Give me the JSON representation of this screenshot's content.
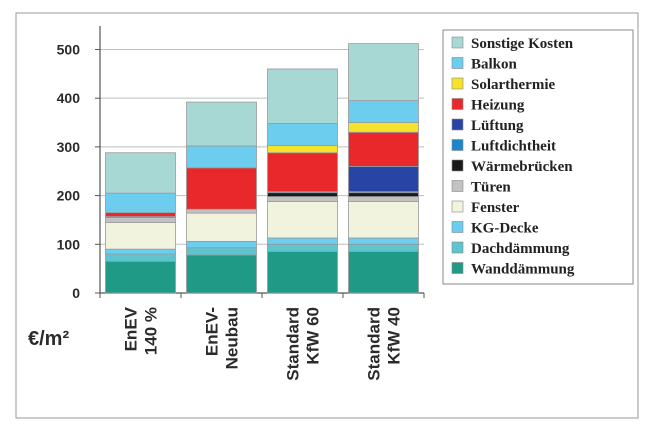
{
  "chart_data": {
    "type": "bar",
    "stacked": true,
    "ylim": [
      0,
      540
    ],
    "yticks": [
      0,
      100,
      200,
      300,
      400,
      500
    ],
    "ylabel": "€/m²",
    "legend_position": "right",
    "categories": [
      [
        "EnEV",
        "140 %"
      ],
      [
        "EnEV-",
        "Neubau"
      ],
      [
        "Standard",
        "KfW 60"
      ],
      [
        "Standard",
        "KfW 40"
      ]
    ],
    "series": [
      {
        "name": "Wanddämmung",
        "color": "#1e9a86",
        "values": [
          65,
          78,
          85,
          85
        ]
      },
      {
        "name": "Dachdämmung",
        "color": "#5ec4cf",
        "values": [
          15,
          15,
          15,
          15
        ]
      },
      {
        "name": "KG-Decke",
        "color": "#6ccdee",
        "values": [
          10,
          13,
          13,
          13
        ]
      },
      {
        "name": "Fenster",
        "color": "#f2f3df",
        "values": [
          55,
          58,
          75,
          75
        ]
      },
      {
        "name": "Türen",
        "color": "#c2c2c2",
        "values": [
          10,
          8,
          10,
          10
        ]
      },
      {
        "name": "Wärmebrücken",
        "color": "#1a1a1a",
        "values": [
          0,
          0,
          8,
          8
        ]
      },
      {
        "name": "Luftdichtheit",
        "color": "#1d86c8",
        "values": [
          2,
          0,
          2,
          2
        ]
      },
      {
        "name": "Lüftung",
        "color": "#2844a4",
        "values": [
          0,
          0,
          0,
          52
        ]
      },
      {
        "name": "Heizung",
        "color": "#e8282a",
        "values": [
          8,
          85,
          80,
          70
        ]
      },
      {
        "name": "Solarthermie",
        "color": "#f6e22a",
        "values": [
          0,
          0,
          15,
          20
        ]
      },
      {
        "name": "Balkon",
        "color": "#6ccdee",
        "values": [
          40,
          45,
          45,
          45
        ]
      },
      {
        "name": "Sonstige Kosten",
        "color": "#a8d8d4",
        "values": [
          83,
          90,
          112,
          117
        ]
      }
    ]
  }
}
